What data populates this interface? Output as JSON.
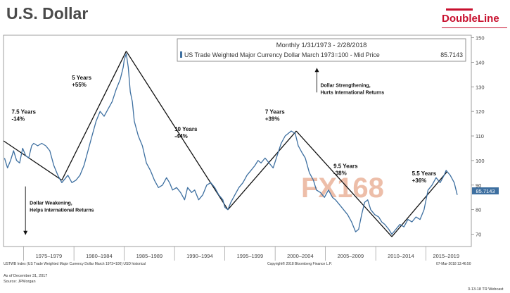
{
  "page": {
    "title": "U.S. Dollar",
    "logo": "DoubleLine",
    "footer": {
      "left": "USTWB Index (US Trade Weighted Major Currency Dollar March 1973=100) USD historical",
      "center": "Copyright® 2018 Bloomberg Finance L.P.",
      "right": "07-Mar-2018 13:46:50",
      "asof": "As of December 31, 2017",
      "source": "Source: JPMorgan",
      "stamp": "3-13-18  TR Webcast"
    },
    "watermark": "FX168"
  },
  "chart_data": {
    "type": "line",
    "title": "Monthly 1/31/1973 - 2/28/2018",
    "series": [
      {
        "name": "US Trade Weighted Major Currency Dollar March 1973=100 - Mid Price",
        "last_value": "85.7143",
        "color": "#3d6fa0",
        "x": [
          1973.1,
          1973.4,
          1973.7,
          1974.0,
          1974.3,
          1974.6,
          1974.9,
          1975.2,
          1975.5,
          1975.8,
          1976.0,
          1976.4,
          1976.8,
          1977.2,
          1977.6,
          1978.0,
          1978.4,
          1978.8,
          1979.0,
          1979.4,
          1979.8,
          1980.2,
          1980.6,
          1981.0,
          1981.4,
          1981.8,
          1982.2,
          1982.6,
          1983.0,
          1983.4,
          1983.8,
          1984.2,
          1984.6,
          1984.9,
          1985.0,
          1985.2,
          1985.4,
          1985.6,
          1985.8,
          1986.0,
          1986.4,
          1986.8,
          1987.2,
          1987.6,
          1988.0,
          1988.4,
          1988.8,
          1989.2,
          1989.5,
          1989.8,
          1990.2,
          1990.6,
          1991.0,
          1991.3,
          1991.7,
          1992.0,
          1992.4,
          1992.8,
          1993.2,
          1993.6,
          1994.0,
          1994.4,
          1994.8,
          1995.0,
          1995.3,
          1995.6,
          1996.0,
          1996.4,
          1996.8,
          1997.2,
          1997.6,
          1998.0,
          1998.3,
          1998.6,
          1999.0,
          1999.4,
          1999.8,
          2000.2,
          2000.6,
          2001.0,
          2001.3,
          2001.6,
          2002.0,
          2002.3,
          2002.7,
          2003.0,
          2003.4,
          2003.8,
          2004.1,
          2004.5,
          2004.9,
          2005.3,
          2005.7,
          2006.0,
          2006.4,
          2006.8,
          2007.2,
          2007.6,
          2008.0,
          2008.3,
          2008.6,
          2008.9,
          2009.2,
          2009.5,
          2009.9,
          2010.3,
          2010.6,
          2010.9,
          2011.3,
          2011.6,
          2012.0,
          2012.4,
          2012.8,
          2013.2,
          2013.6,
          2014.0,
          2014.4,
          2014.8,
          2015.2,
          2015.6,
          2016.0,
          2016.4,
          2016.8,
          2017.0,
          2017.4,
          2017.8,
          2018.1
        ],
        "y": [
          101,
          97,
          100,
          104,
          100,
          99,
          105,
          102,
          101,
          106,
          107,
          106,
          107,
          106,
          104,
          98,
          94,
          91,
          92,
          94,
          91,
          92,
          94,
          98,
          104,
          110,
          116,
          120,
          118,
          121,
          124,
          129,
          133,
          138,
          141,
          143.5,
          138,
          128,
          124,
          116,
          110,
          106,
          99,
          96,
          92,
          89,
          90,
          93,
          91,
          88,
          89,
          87,
          84,
          89,
          87,
          88,
          84,
          86,
          90,
          91,
          89,
          86,
          84,
          81,
          80,
          83,
          86,
          89,
          91,
          94,
          96,
          98,
          100,
          99,
          101,
          99,
          97,
          102,
          107,
          110,
          111,
          112,
          111,
          106,
          103,
          101,
          95,
          92,
          88,
          87,
          85,
          88,
          85,
          84,
          82,
          80,
          78,
          75,
          71,
          72,
          78,
          83,
          84,
          80,
          78,
          77,
          75,
          74,
          72,
          70,
          72,
          74,
          73,
          76,
          75,
          77,
          76,
          80,
          88,
          90,
          93,
          91,
          94,
          96,
          94,
          91,
          86
        ]
      }
    ],
    "xlabels": [
      "1975–1979",
      "1980–1984",
      "1985–1989",
      "1990–1994",
      "1995–1999",
      "2000–2004",
      "2005–2009",
      "2010–2014",
      "2015–2019"
    ],
    "xlabel_centers": [
      1977.5,
      1982.5,
      1987.5,
      1992.5,
      1997.5,
      2002.5,
      2007.5,
      2012.5,
      2017.0
    ],
    "xlim": [
      1973.0,
      2019.5
    ],
    "yticks": [
      70,
      80,
      90,
      100,
      110,
      120,
      130,
      140,
      150
    ],
    "ylim": [
      65,
      151
    ],
    "trend_lines": [
      {
        "x": [
          1973.0,
          1978.8
        ],
        "y": [
          108,
          92
        ]
      },
      {
        "x": [
          1978.8,
          1985.2
        ],
        "y": [
          92,
          144.5
        ]
      },
      {
        "x": [
          1985.2,
          1995.3
        ],
        "y": [
          144.5,
          80
        ]
      },
      {
        "x": [
          1995.3,
          2002.1
        ],
        "y": [
          80,
          112
        ]
      },
      {
        "x": [
          2002.1,
          2011.6
        ],
        "y": [
          112,
          69
        ]
      },
      {
        "x": [
          2011.6,
          2017.1
        ],
        "y": [
          69,
          95.5
        ]
      }
    ],
    "annotations": [
      {
        "line1": "7.5 Years",
        "line2": "-14%",
        "x": 1973.8,
        "y": 119
      },
      {
        "line1": "5 Years",
        "line2": "+55%",
        "x": 1979.8,
        "y": 133
      },
      {
        "line1": "10 Years",
        "line2": "-44%",
        "x": 1990.0,
        "y": 112
      },
      {
        "line1": "7 Years",
        "line2": "+39%",
        "x": 1999.0,
        "y": 119
      },
      {
        "line1": "9.5 Years",
        "line2": "-38%",
        "x": 2005.8,
        "y": 97
      },
      {
        "line1": "5.5 Years",
        "line2": "+36%",
        "x": 2013.6,
        "y": 94
      }
    ],
    "callouts": {
      "strengthening": {
        "line1": "Dollar Strengthening,",
        "line2": "Hurts International Returns",
        "x": 2004.5,
        "y": 130
      },
      "weakening": {
        "line1": "Dollar Weakening,",
        "line2": "Helps International Returns",
        "x": 1975.6,
        "y": 82
      }
    },
    "grid": false,
    "legend": "top"
  }
}
